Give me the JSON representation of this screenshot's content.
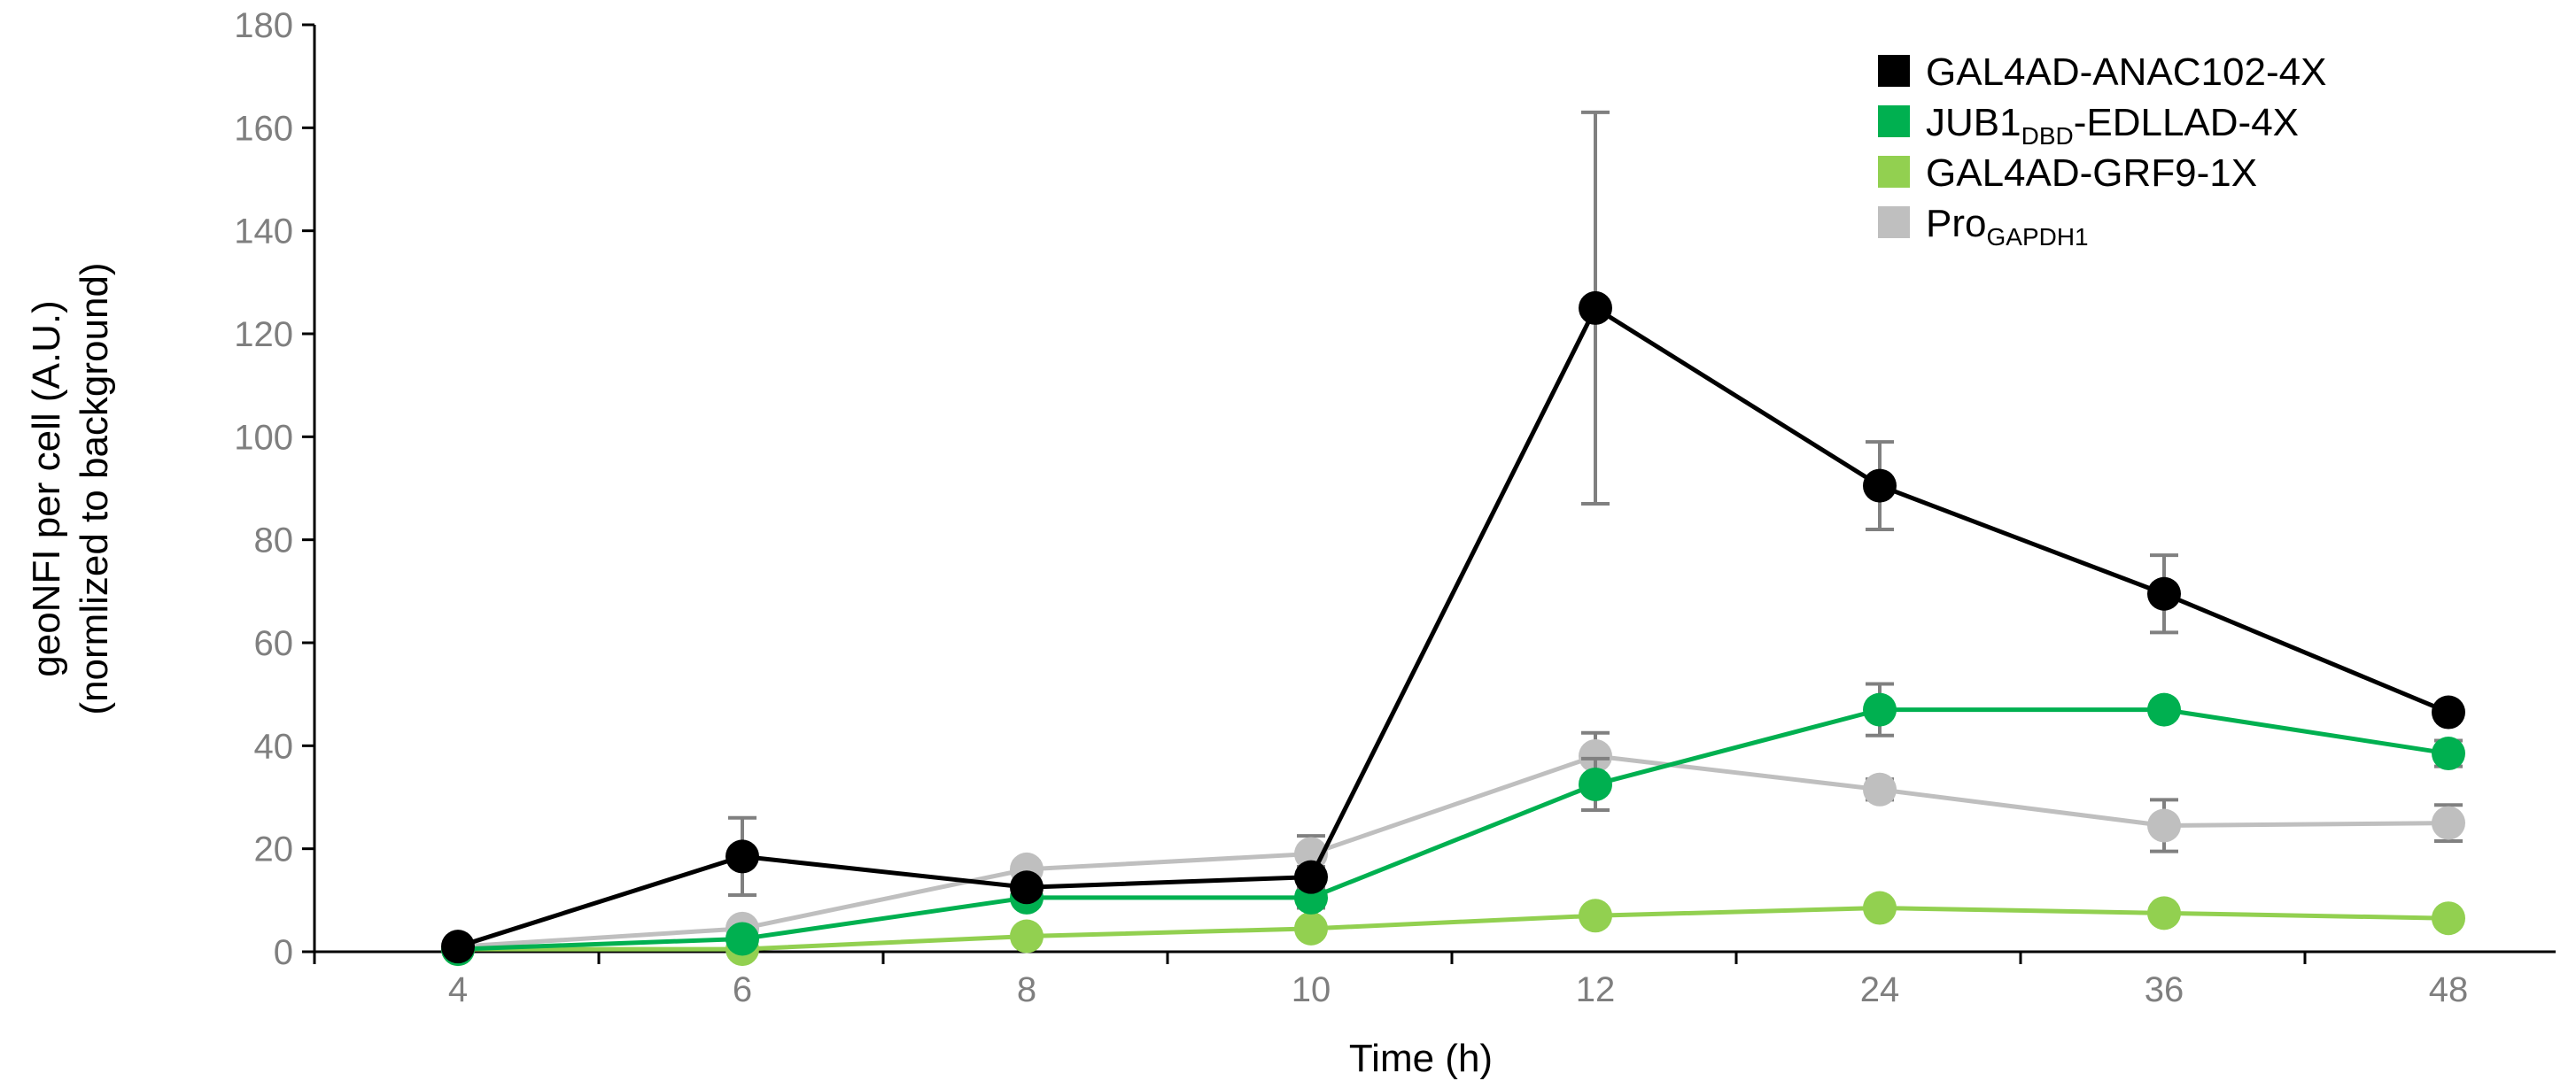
{
  "chart_data": {
    "type": "line",
    "categories": [
      "4",
      "6",
      "8",
      "10",
      "12",
      "24",
      "36",
      "48"
    ],
    "xlabel": "Time  (h)",
    "ylabel": [
      "geoNFI  per cell (A.U.)",
      "(normlized to background)"
    ],
    "ylim": [
      0,
      180
    ],
    "yticks": [
      0,
      20,
      40,
      60,
      80,
      100,
      120,
      140,
      160,
      180
    ],
    "grid": false,
    "legend_position": "top-right",
    "series": [
      {
        "legend_main": "GAL4AD-ANAC102-4X",
        "legend_sub": "",
        "legend_tail": "",
        "color": "#000000",
        "values": [
          1,
          18.5,
          12.5,
          14.5,
          125,
          90.5,
          69.5,
          46.5
        ],
        "errors": [
          0.5,
          7.5,
          1,
          2,
          38,
          8.5,
          7.5,
          1.5
        ]
      },
      {
        "legend_main": "JUB1",
        "legend_sub": "DBD",
        "legend_tail": "-EDLLAD-4X",
        "color": "#00b050",
        "values": [
          0.5,
          2.5,
          10.5,
          10.5,
          32.5,
          47,
          47,
          38.5
        ],
        "errors": [
          0.5,
          1,
          1.5,
          2,
          5,
          5,
          1.5,
          2.5
        ]
      },
      {
        "legend_main": "GAL4AD-GRF9-1X",
        "legend_sub": "",
        "legend_tail": "",
        "color": "#92d050",
        "values": [
          0.5,
          0.5,
          3,
          4.5,
          7,
          8.5,
          7.5,
          6.5
        ],
        "errors": [
          0.5,
          0.5,
          0.5,
          0.5,
          0.5,
          0.5,
          0.5,
          0.5
        ]
      },
      {
        "legend_main": "Pro",
        "legend_sub": "GAPDH1",
        "legend_tail": "",
        "color": "#bfbfbf",
        "values": [
          1,
          4.5,
          16,
          19,
          38,
          31.5,
          24.5,
          25
        ],
        "errors": [
          0.5,
          1,
          1.5,
          3.5,
          4.5,
          2,
          5,
          3.5
        ]
      }
    ]
  }
}
